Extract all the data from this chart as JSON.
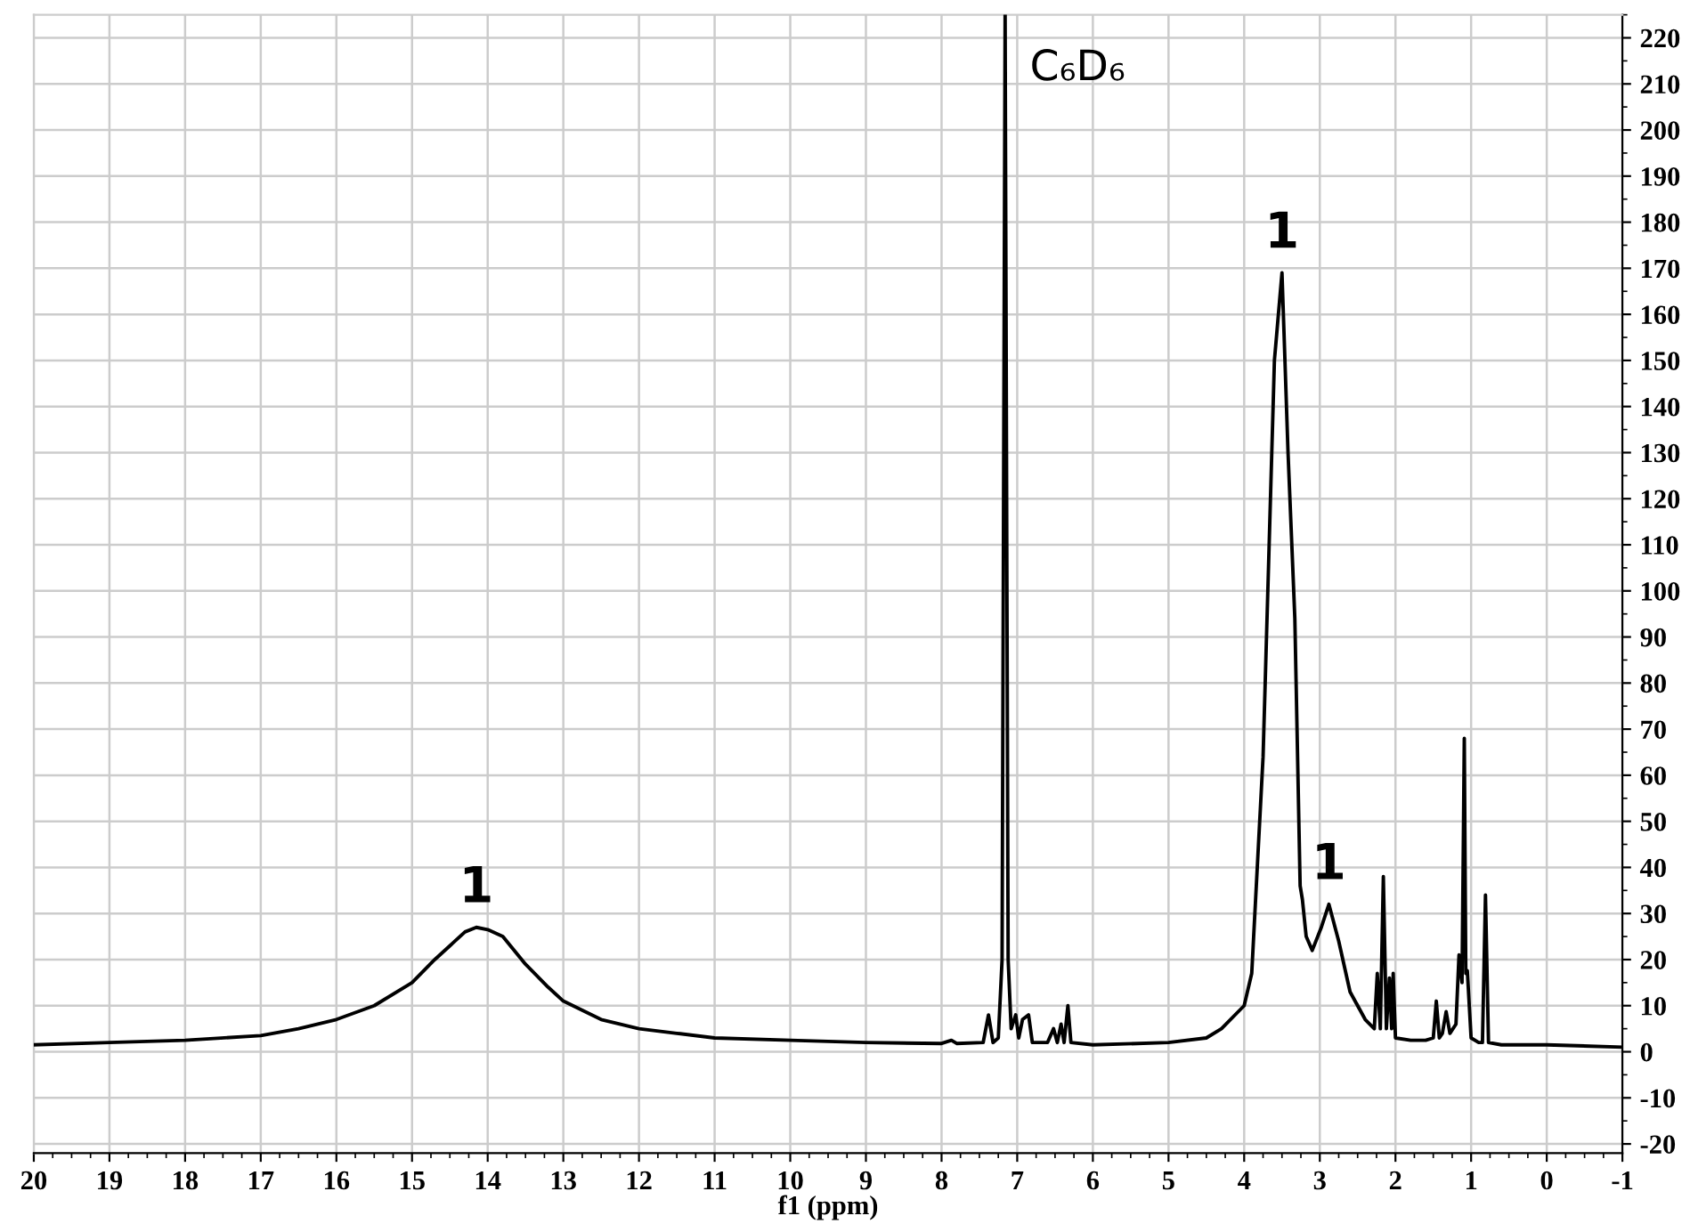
{
  "chart_data": {
    "type": "line",
    "xlabel": "f1 (ppm)",
    "x": [
      20,
      19,
      18,
      17,
      16.5,
      16,
      15.5,
      15,
      14.7,
      14.5,
      14.3,
      14.15,
      14.0,
      13.8,
      13.5,
      13.2,
      13,
      12.5,
      12,
      11.5,
      11,
      10,
      9,
      8,
      7.87,
      7.8,
      7.45,
      7.38,
      7.32,
      7.25,
      7.2,
      7.16,
      7.12,
      7.08,
      7.02,
      6.98,
      6.93,
      6.85,
      6.8,
      6.6,
      6.52,
      6.47,
      6.42,
      6.38,
      6.33,
      6.29,
      6,
      5,
      4.5,
      4.3,
      4.0,
      3.9,
      3.75,
      3.6,
      3.5,
      3.42,
      3.33,
      3.26,
      3.23,
      3.18,
      3.1,
      2.98,
      2.88,
      2.75,
      2.6,
      2.4,
      2.28,
      2.24,
      2.2,
      2.16,
      2.12,
      2.08,
      2.05,
      2.03,
      2.0,
      1.8,
      1.6,
      1.5,
      1.46,
      1.42,
      1.38,
      1.33,
      1.28,
      1.2,
      1.16,
      1.12,
      1.09,
      1.07,
      1.05,
      1.0,
      0.9,
      0.85,
      0.81,
      0.77,
      0.6,
      0,
      -1
    ],
    "series": [
      {
        "color": "#000000",
        "values": [
          1.5,
          2,
          2.5,
          3.5,
          5,
          7,
          10,
          15,
          20,
          23,
          26,
          27,
          26.5,
          25,
          19,
          14,
          11,
          7,
          5,
          4,
          3,
          2.5,
          2,
          1.8,
          2.5,
          1.8,
          2,
          8,
          2,
          3,
          20,
          225,
          20,
          5,
          8,
          3,
          7,
          8,
          2,
          2,
          5,
          2,
          6,
          2,
          10,
          2,
          1.5,
          2,
          3,
          5,
          10,
          17,
          64,
          150,
          169,
          130,
          94,
          36,
          33,
          25,
          22,
          27,
          32,
          24,
          13,
          7,
          5,
          17,
          5,
          38,
          5,
          16,
          5,
          17,
          3,
          2.5,
          2.5,
          3,
          11,
          3,
          4,
          8.7,
          4,
          6,
          21,
          15,
          68,
          17,
          17.6,
          3,
          2,
          2,
          34,
          2,
          1.5,
          1.5,
          1
        ]
      }
    ],
    "xlim": [
      20,
      -1
    ],
    "xticks": [
      20,
      19,
      18,
      17,
      16,
      15,
      14,
      13,
      12,
      11,
      10,
      9,
      8,
      7,
      6,
      5,
      4,
      3,
      2,
      1,
      0,
      -1
    ],
    "ylim": [
      -22,
      225
    ],
    "yticks": [
      -20,
      -10,
      0,
      10,
      20,
      30,
      40,
      50,
      60,
      70,
      80,
      90,
      100,
      110,
      120,
      130,
      140,
      150,
      160,
      170,
      180,
      190,
      200,
      210,
      220
    ],
    "grid": true,
    "marker": "none",
    "line_style": "solid",
    "annotations": [
      {
        "text": "C₆D₆",
        "x": 7.16,
        "y": 225
      },
      {
        "text": "1",
        "x": 14.15,
        "y": 27
      },
      {
        "text": "1",
        "x": 3.5,
        "y": 169
      },
      {
        "text": "1",
        "x": 2.88,
        "y": 32
      }
    ]
  }
}
